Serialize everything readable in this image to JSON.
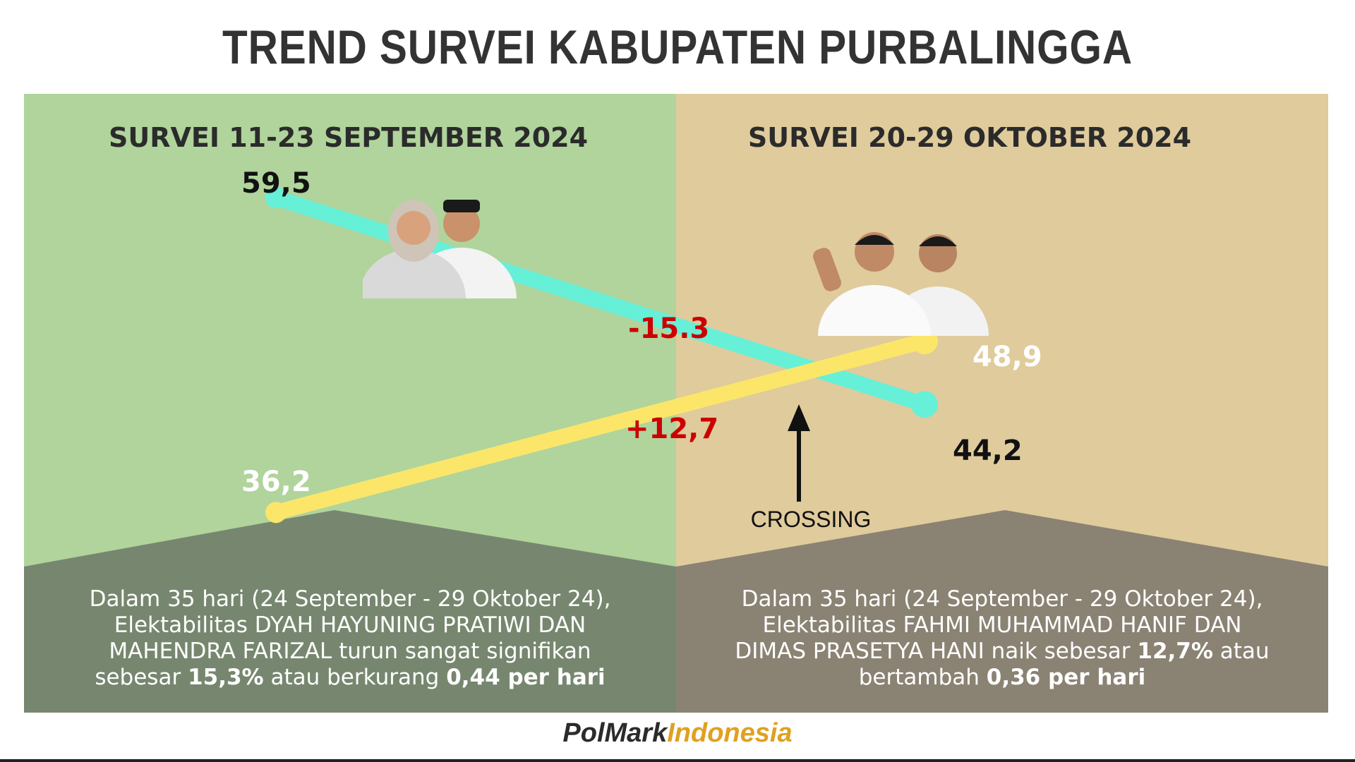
{
  "title": "TREND SURVEI KABUPATEN PURBALINGGA",
  "periods": {
    "left": "SURVEI 11-23 SEPTEMBER 2024",
    "right": "SURVEI 20-29 OKTOBER 2024"
  },
  "chart_data": {
    "type": "line",
    "x": [
      "SURVEI 11-23 SEPTEMBER 2024",
      "SURVEI 20-29 OKTOBER 2024"
    ],
    "ylim": [
      30,
      65
    ],
    "grid": false,
    "series": [
      {
        "values": [
          59.5,
          44.2
        ],
        "labels": [
          "59,5",
          "44,2"
        ],
        "change": "-15.3",
        "color": "#66f0d8"
      },
      {
        "values": [
          36.2,
          48.9
        ],
        "labels": [
          "36,2",
          "48,9"
        ],
        "change": "+12,7",
        "color": "#fbe66a"
      }
    ],
    "annotation": "CROSSING"
  },
  "summaries": {
    "left": {
      "line1": "Dalam 35 hari (24 September - 29 Oktober 24),",
      "line2": "Elektabilitas DYAH HAYUNING PRATIWI DAN",
      "line3": "MAHENDRA FARIZAL turun sangat signifikan",
      "line4_pre": "sebesar ",
      "line4_bold1": "15,3%",
      "line4_mid": " atau berkurang ",
      "line4_bold2": "0,44 per hari"
    },
    "right": {
      "line1": "Dalam 35 hari (24 September - 29 Oktober 24),",
      "line2": "Elektabilitas FAHMI MUHAMMAD HANIF DAN",
      "line3_pre": "DIMAS PRASETYA HANI naik sebesar ",
      "line3_bold": "12,7%",
      "line3_post": " atau",
      "line4_pre": "bertambah ",
      "line4_bold": "0,36 per hari"
    }
  },
  "logo": {
    "part1": "PolMark",
    "part2": "Indonesia"
  },
  "colors": {
    "left_bg": "#b0d49c",
    "right_bg": "#e0cb9c",
    "left_footer": "#77876f",
    "right_footer": "#8a8273",
    "change": "#cc0000"
  }
}
